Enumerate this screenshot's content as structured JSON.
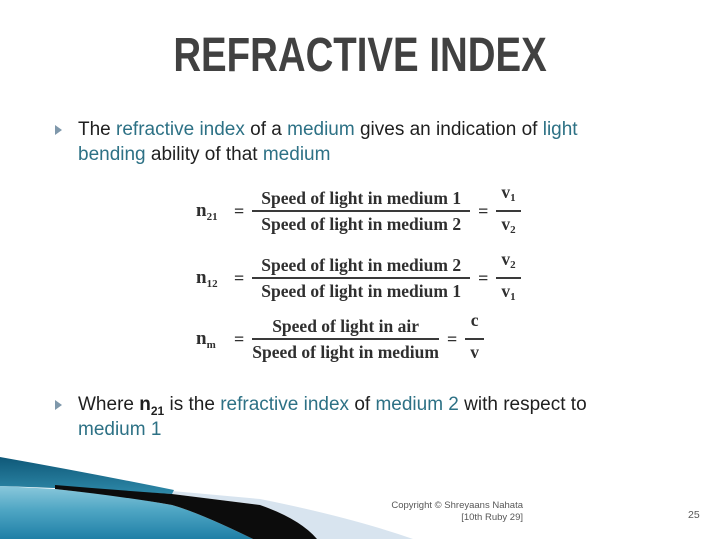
{
  "title": "REFRACTIVE INDEX",
  "bullets": [
    {
      "lines": [
        [
          {
            "t": "The ",
            "c": "black"
          },
          {
            "t": "refractive index",
            "c": "teal"
          },
          {
            "t": " of a ",
            "c": "black"
          },
          {
            "t": "medium",
            "c": "teal"
          },
          {
            "t": " gives an indication of ",
            "c": "black"
          },
          {
            "t": "light",
            "c": "teal"
          }
        ],
        [
          {
            "t": "bending",
            "c": "teal"
          },
          {
            "t": " ability of that ",
            "c": "black"
          },
          {
            "t": "medium",
            "c": "teal"
          }
        ]
      ]
    },
    {
      "lines": [
        [
          {
            "t": "Where ",
            "c": "black"
          },
          {
            "t": "n",
            "c": "black",
            "bold": true
          },
          {
            "t": "21",
            "c": "black",
            "bold": true,
            "sub": true
          },
          {
            "t": " is the ",
            "c": "black"
          },
          {
            "t": "refractive index",
            "c": "teal"
          },
          {
            "t": " of ",
            "c": "black"
          },
          {
            "t": "medium 2",
            "c": "teal"
          },
          {
            "t": " with respect to",
            "c": "black"
          }
        ],
        [
          {
            "t": "medium 1",
            "c": "teal"
          }
        ]
      ]
    }
  ],
  "formulas": [
    {
      "eq": "=",
      "label_base": "n",
      "label_sub": "21",
      "numerator": "Speed of light in medium 1",
      "denominator": "Speed of light in medium 2",
      "result_num_base": "v",
      "result_num_sub": "1",
      "result_den_base": "v",
      "result_den_sub": "2"
    },
    {
      "eq": "=",
      "label_base": "n",
      "label_sub": "12",
      "numerator": "Speed of light in medium 2",
      "denominator": "Speed of light in medium 1",
      "result_num_base": "v",
      "result_num_sub": "2",
      "result_den_base": "v",
      "result_den_sub": "1"
    },
    {
      "eq": "=",
      "label_base": "n",
      "label_sub": "m",
      "numerator": "Speed of light in air",
      "denominator": "Speed of light in medium",
      "result_num_base": "c",
      "result_num_sub": "",
      "result_den_base": "v",
      "result_den_sub": ""
    }
  ],
  "footer": {
    "copyright_line1": "Copyright © Shreyaans Nahata",
    "copyright_line2": "[10th Ruby 29]",
    "page_number": "25"
  },
  "colors": {
    "accent_teal_text": "#2D7185",
    "title_gray": "#414141",
    "bullet_marker": "#7F98AB",
    "swoosh_teal_dark": "#0F5878",
    "swoosh_teal_light": "#4FA6C4",
    "swoosh_pale": "#D8E4EF",
    "swoosh_black": "#0C0C0C"
  }
}
